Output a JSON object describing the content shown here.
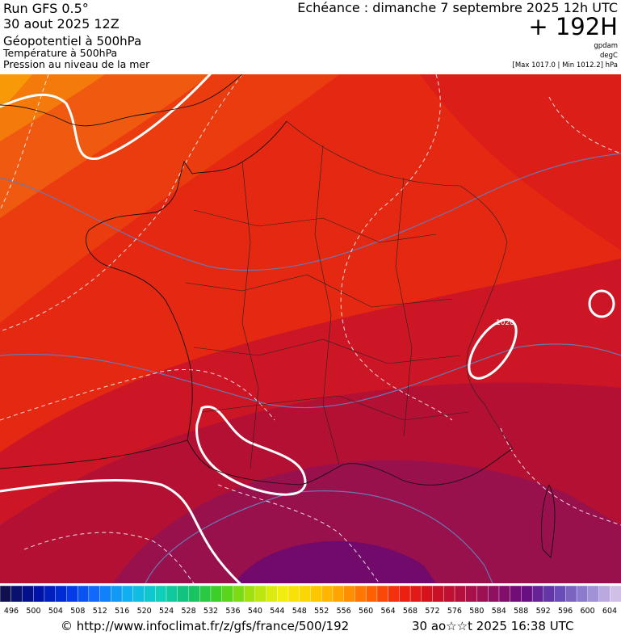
{
  "header": {
    "run": "Run GFS 0.5°",
    "date": "30 aout 2025 12Z",
    "echeance": "Echéance : dimanche 7 septembre 2025 12h UTC",
    "lead": "+ 192H",
    "layers": [
      "Géopotentiel à 500hPa",
      "Température à 500hPa",
      "Pression au niveau de la mer"
    ],
    "units": [
      "gpdam",
      "degC",
      "[Max 1017.0 | Min 1012.2] hPa"
    ]
  },
  "map": {
    "contour_label": "1020"
  },
  "colorbar": {
    "labels": [
      496,
      500,
      504,
      508,
      512,
      516,
      520,
      524,
      528,
      532,
      536,
      540,
      544,
      548,
      552,
      556,
      560,
      564,
      568,
      572,
      576,
      580,
      584,
      588,
      592,
      596,
      600,
      604
    ]
  },
  "footer": {
    "url": "© http://www.infoclimat.fr/z/gfs/france/500/192",
    "timestamp": "30 ao☆☆t 2025 16:38 UTC"
  }
}
